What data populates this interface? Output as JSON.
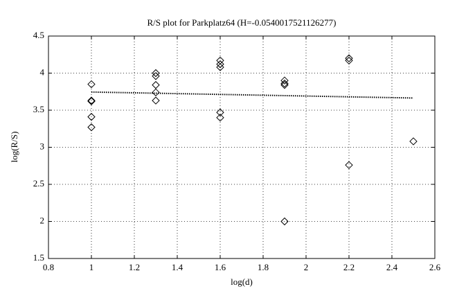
{
  "chart_data": {
    "type": "scatter",
    "title": "R/S plot for Parkplatz64 (H=-0.0540017521126277)",
    "xlabel": "log(d)",
    "ylabel": "log(R/S)",
    "xlim": [
      0.8,
      2.6
    ],
    "ylim": [
      1.5,
      4.5
    ],
    "xticks": [
      0.8,
      1,
      1.2,
      1.4,
      1.6,
      1.8,
      2,
      2.2,
      2.4,
      2.6
    ],
    "yticks": [
      1.5,
      2,
      2.5,
      3,
      3.5,
      4,
      4.5
    ],
    "grid": true,
    "series": [
      {
        "marker": "diamond",
        "color": "#000000",
        "x": [
          1,
          1,
          1,
          1,
          1,
          1.3,
          1.3,
          1.3,
          1.3,
          1.3,
          1.6,
          1.6,
          1.6,
          1.6,
          1.6,
          1.9,
          1.9,
          1.9,
          1.9,
          2.2,
          2.2,
          2.2,
          2.5
        ],
        "values": [
          3.85,
          3.63,
          3.62,
          3.41,
          3.27,
          4.0,
          3.96,
          3.84,
          3.74,
          3.63,
          4.17,
          4.12,
          4.08,
          3.47,
          3.4,
          3.9,
          3.86,
          3.84,
          2.0,
          4.2,
          4.17,
          2.76,
          3.08
        ]
      },
      {
        "line": "dotted",
        "color": "#000000",
        "x": [
          1,
          2.5
        ],
        "values": [
          3.745,
          3.664
        ]
      }
    ]
  }
}
